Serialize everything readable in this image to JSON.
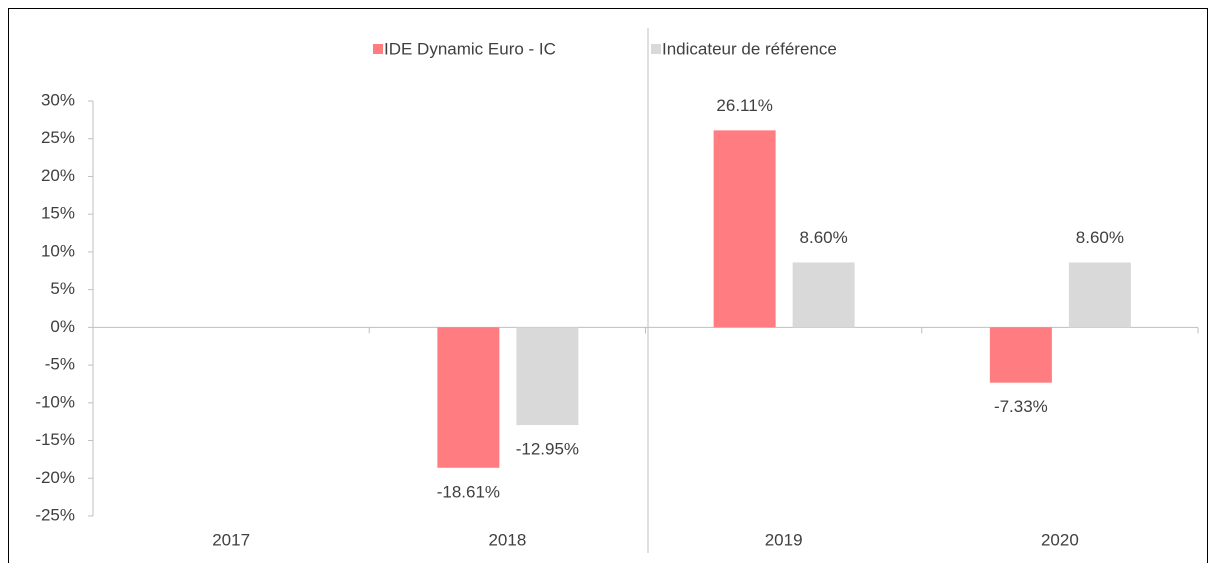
{
  "chart_data": {
    "type": "bar",
    "categories": [
      "2017",
      "2018",
      "2019",
      "2020"
    ],
    "series": [
      {
        "name": "IDE Dynamic Euro - IC",
        "color": "#ff7c80",
        "values": [
          null,
          -18.61,
          26.11,
          -7.33
        ],
        "value_labels": [
          null,
          "-18.61%",
          "26.11%",
          "-7.33%"
        ]
      },
      {
        "name": "Indicateur de référence",
        "color": "#d9d9d9",
        "values": [
          null,
          -12.95,
          8.6,
          8.6
        ],
        "value_labels": [
          null,
          "-12.95%",
          "8.60%",
          "8.60%"
        ]
      }
    ],
    "ylim": [
      -25,
      30
    ],
    "yticks": [
      {
        "value": -25,
        "label": "-25%"
      },
      {
        "value": -20,
        "label": "-20%"
      },
      {
        "value": -15,
        "label": "-15%"
      },
      {
        "value": -10,
        "label": "-10%"
      },
      {
        "value": -5,
        "label": "-5%"
      },
      {
        "value": 0,
        "label": "0%"
      },
      {
        "value": 5,
        "label": "5%"
      },
      {
        "value": 10,
        "label": "10%"
      },
      {
        "value": 15,
        "label": "15%"
      },
      {
        "value": 20,
        "label": "20%"
      },
      {
        "value": 25,
        "label": "25%"
      },
      {
        "value": 30,
        "label": "30%"
      }
    ],
    "legend": "top"
  }
}
